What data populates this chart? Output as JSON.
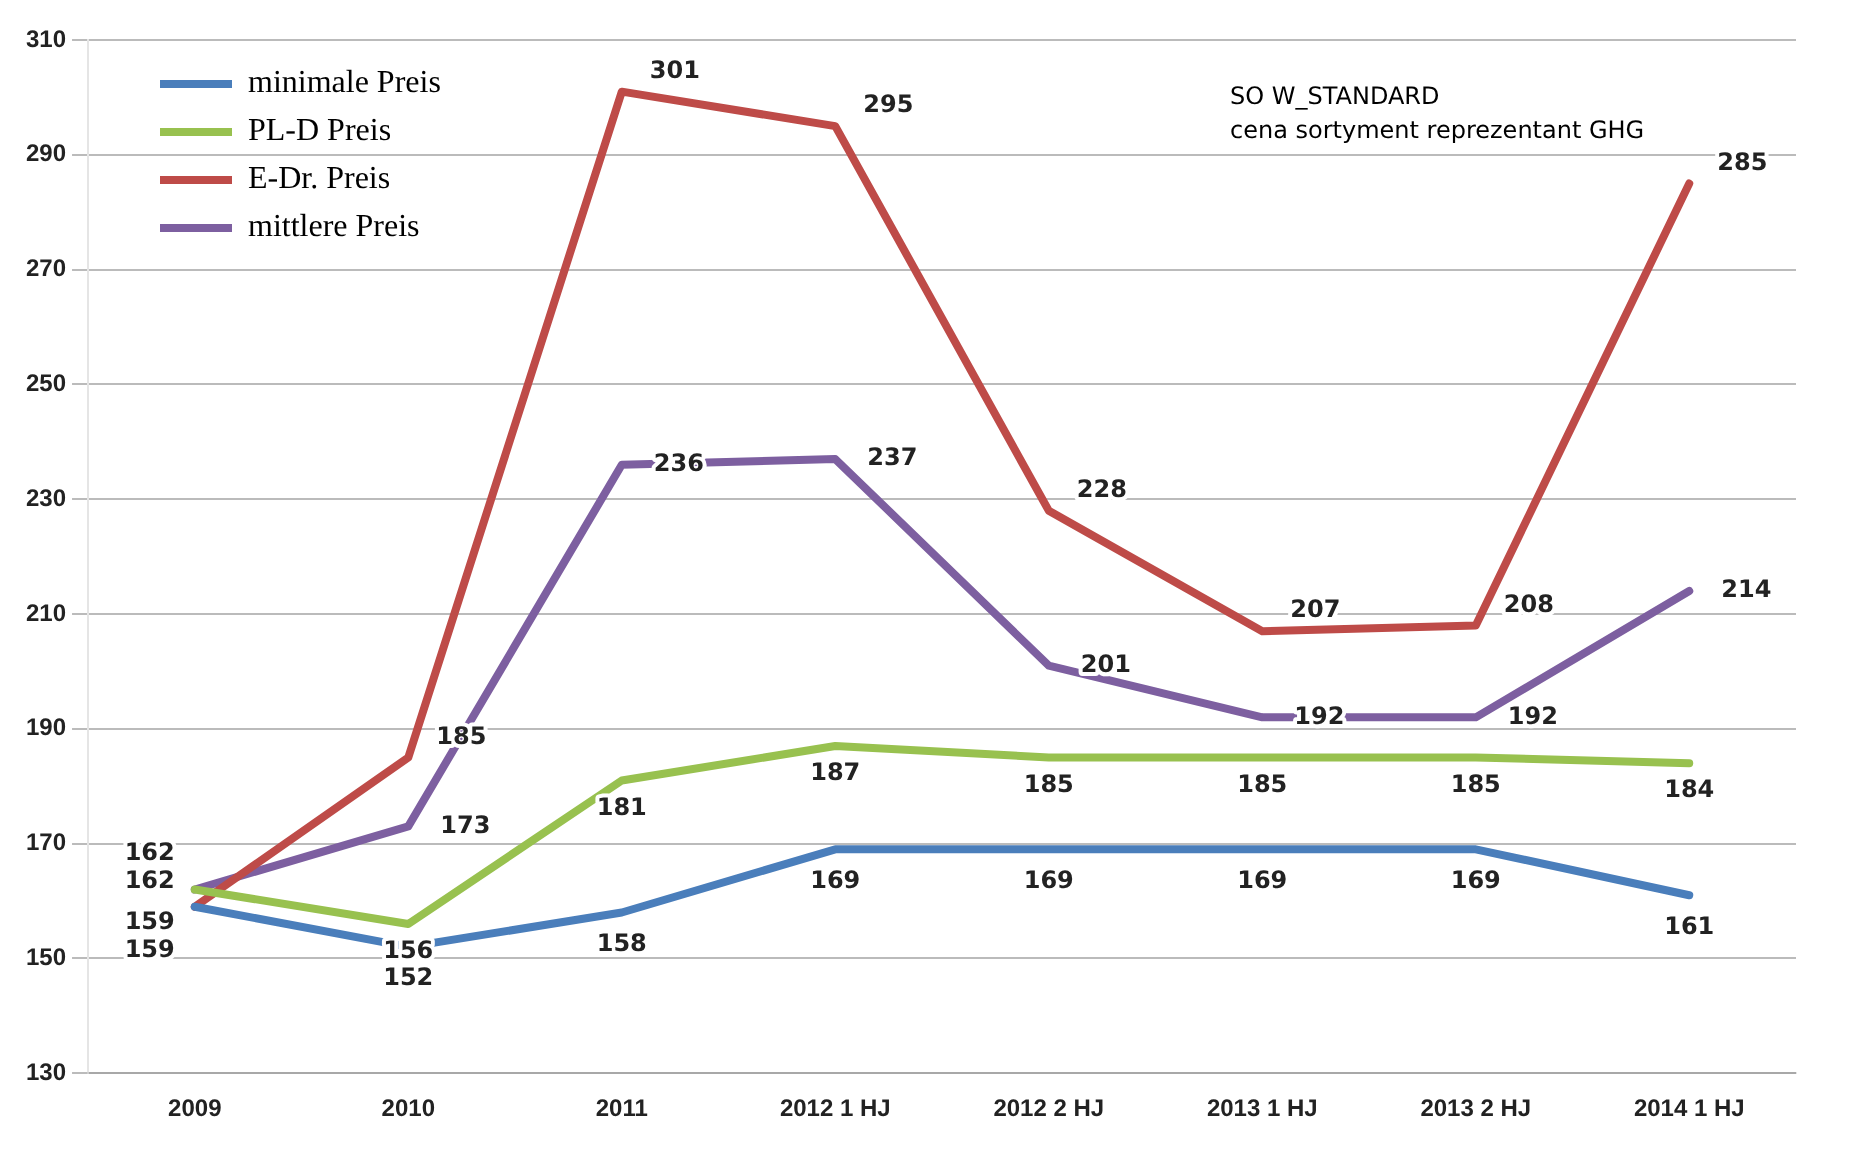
{
  "chart_data": {
    "type": "line",
    "categories": [
      "2009",
      "2010",
      "2011",
      "2012 1 HJ",
      "2012 2 HJ",
      "2013 1 HJ",
      "2013 2 HJ",
      "2014 1 HJ"
    ],
    "series": [
      {
        "name": "minimale Preis",
        "color": "#4a7ebb",
        "values": [
          159,
          152,
          158,
          169,
          169,
          169,
          169,
          161
        ]
      },
      {
        "name": "PL-D Preis",
        "color": "#98c14f",
        "values": [
          162,
          156,
          181,
          187,
          185,
          185,
          185,
          184
        ]
      },
      {
        "name": "E-Dr. Preis",
        "color": "#be4b48",
        "values": [
          159,
          185,
          301,
          295,
          228,
          207,
          208,
          285
        ]
      },
      {
        "name": "mittlere Preis",
        "color": "#7d5fa0",
        "values": [
          162,
          173,
          236,
          237,
          201,
          192,
          192,
          214
        ]
      }
    ],
    "ylim": [
      130,
      310
    ],
    "yticks": [
      130,
      150,
      170,
      190,
      210,
      230,
      250,
      270,
      290,
      310
    ],
    "grid": "y",
    "legend": "top left",
    "marker": "none",
    "line_style": "solid",
    "data_labels": true,
    "annotations": [
      "SO W_STANDARD",
      "cena sortyment reprezentant GHG"
    ]
  }
}
